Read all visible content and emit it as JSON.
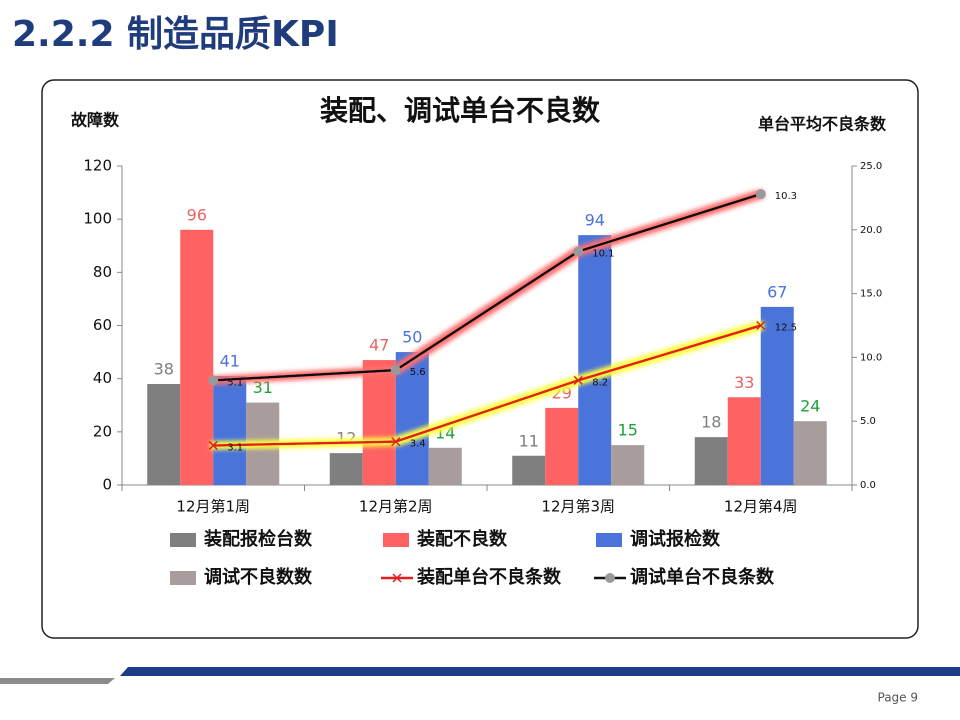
{
  "slide_title": "2.2.2  制造品质KPI",
  "page": "Page 9",
  "chart_data": {
    "type": "bar",
    "title": "装配、调试单台不良数",
    "y_label": "故障数",
    "y2_label": "单台平均不良条数",
    "categories": [
      "12月第1周",
      "12月第2周",
      "12月第3周",
      "12月第4周"
    ],
    "ylim": [
      0,
      120
    ],
    "yticks": [
      0,
      20,
      40,
      60,
      80,
      100,
      120
    ],
    "y2lim": [
      0,
      25
    ],
    "y2ticks": [
      {
        "value": 0,
        "label": "0.0"
      },
      {
        "value": 5,
        "label": "5.0"
      },
      {
        "value": 10,
        "label": "10.0"
      },
      {
        "value": 15,
        "label": "15.0"
      },
      {
        "value": 20,
        "label": "20.0"
      },
      {
        "value": 25,
        "label": "25.0"
      }
    ],
    "y2_stacked": true,
    "series": [
      {
        "name": "装配报检台数",
        "type": "bar",
        "color": "#7f7f7f",
        "label_color": "#7f7f7f",
        "values": [
          38,
          12,
          11,
          18
        ]
      },
      {
        "name": "装配不良数",
        "type": "bar",
        "color": "#ff6262",
        "label_color": "#e86464",
        "values": [
          96,
          47,
          29,
          33
        ]
      },
      {
        "name": "调试报检数",
        "type": "bar",
        "color": "#4a74d9",
        "label_color": "#4a74d9",
        "values": [
          41,
          50,
          94,
          67
        ]
      },
      {
        "name": "调试不良数数",
        "type": "bar",
        "color": "#a89c9c",
        "label_color": "#1fa03a",
        "values": [
          31,
          14,
          15,
          24
        ]
      },
      {
        "name": "装配单台不良条数",
        "type": "line",
        "axis": "y2",
        "color": "#e0201a",
        "glow": "#ffff40",
        "values": [
          3.1,
          3.4,
          8.2,
          12.5
        ]
      },
      {
        "name": "调试单台不良条数",
        "type": "line",
        "axis": "y2",
        "color": "#111111",
        "glow": "#ff7070",
        "values": [
          5.1,
          5.6,
          10.1,
          10.3
        ]
      }
    ]
  }
}
